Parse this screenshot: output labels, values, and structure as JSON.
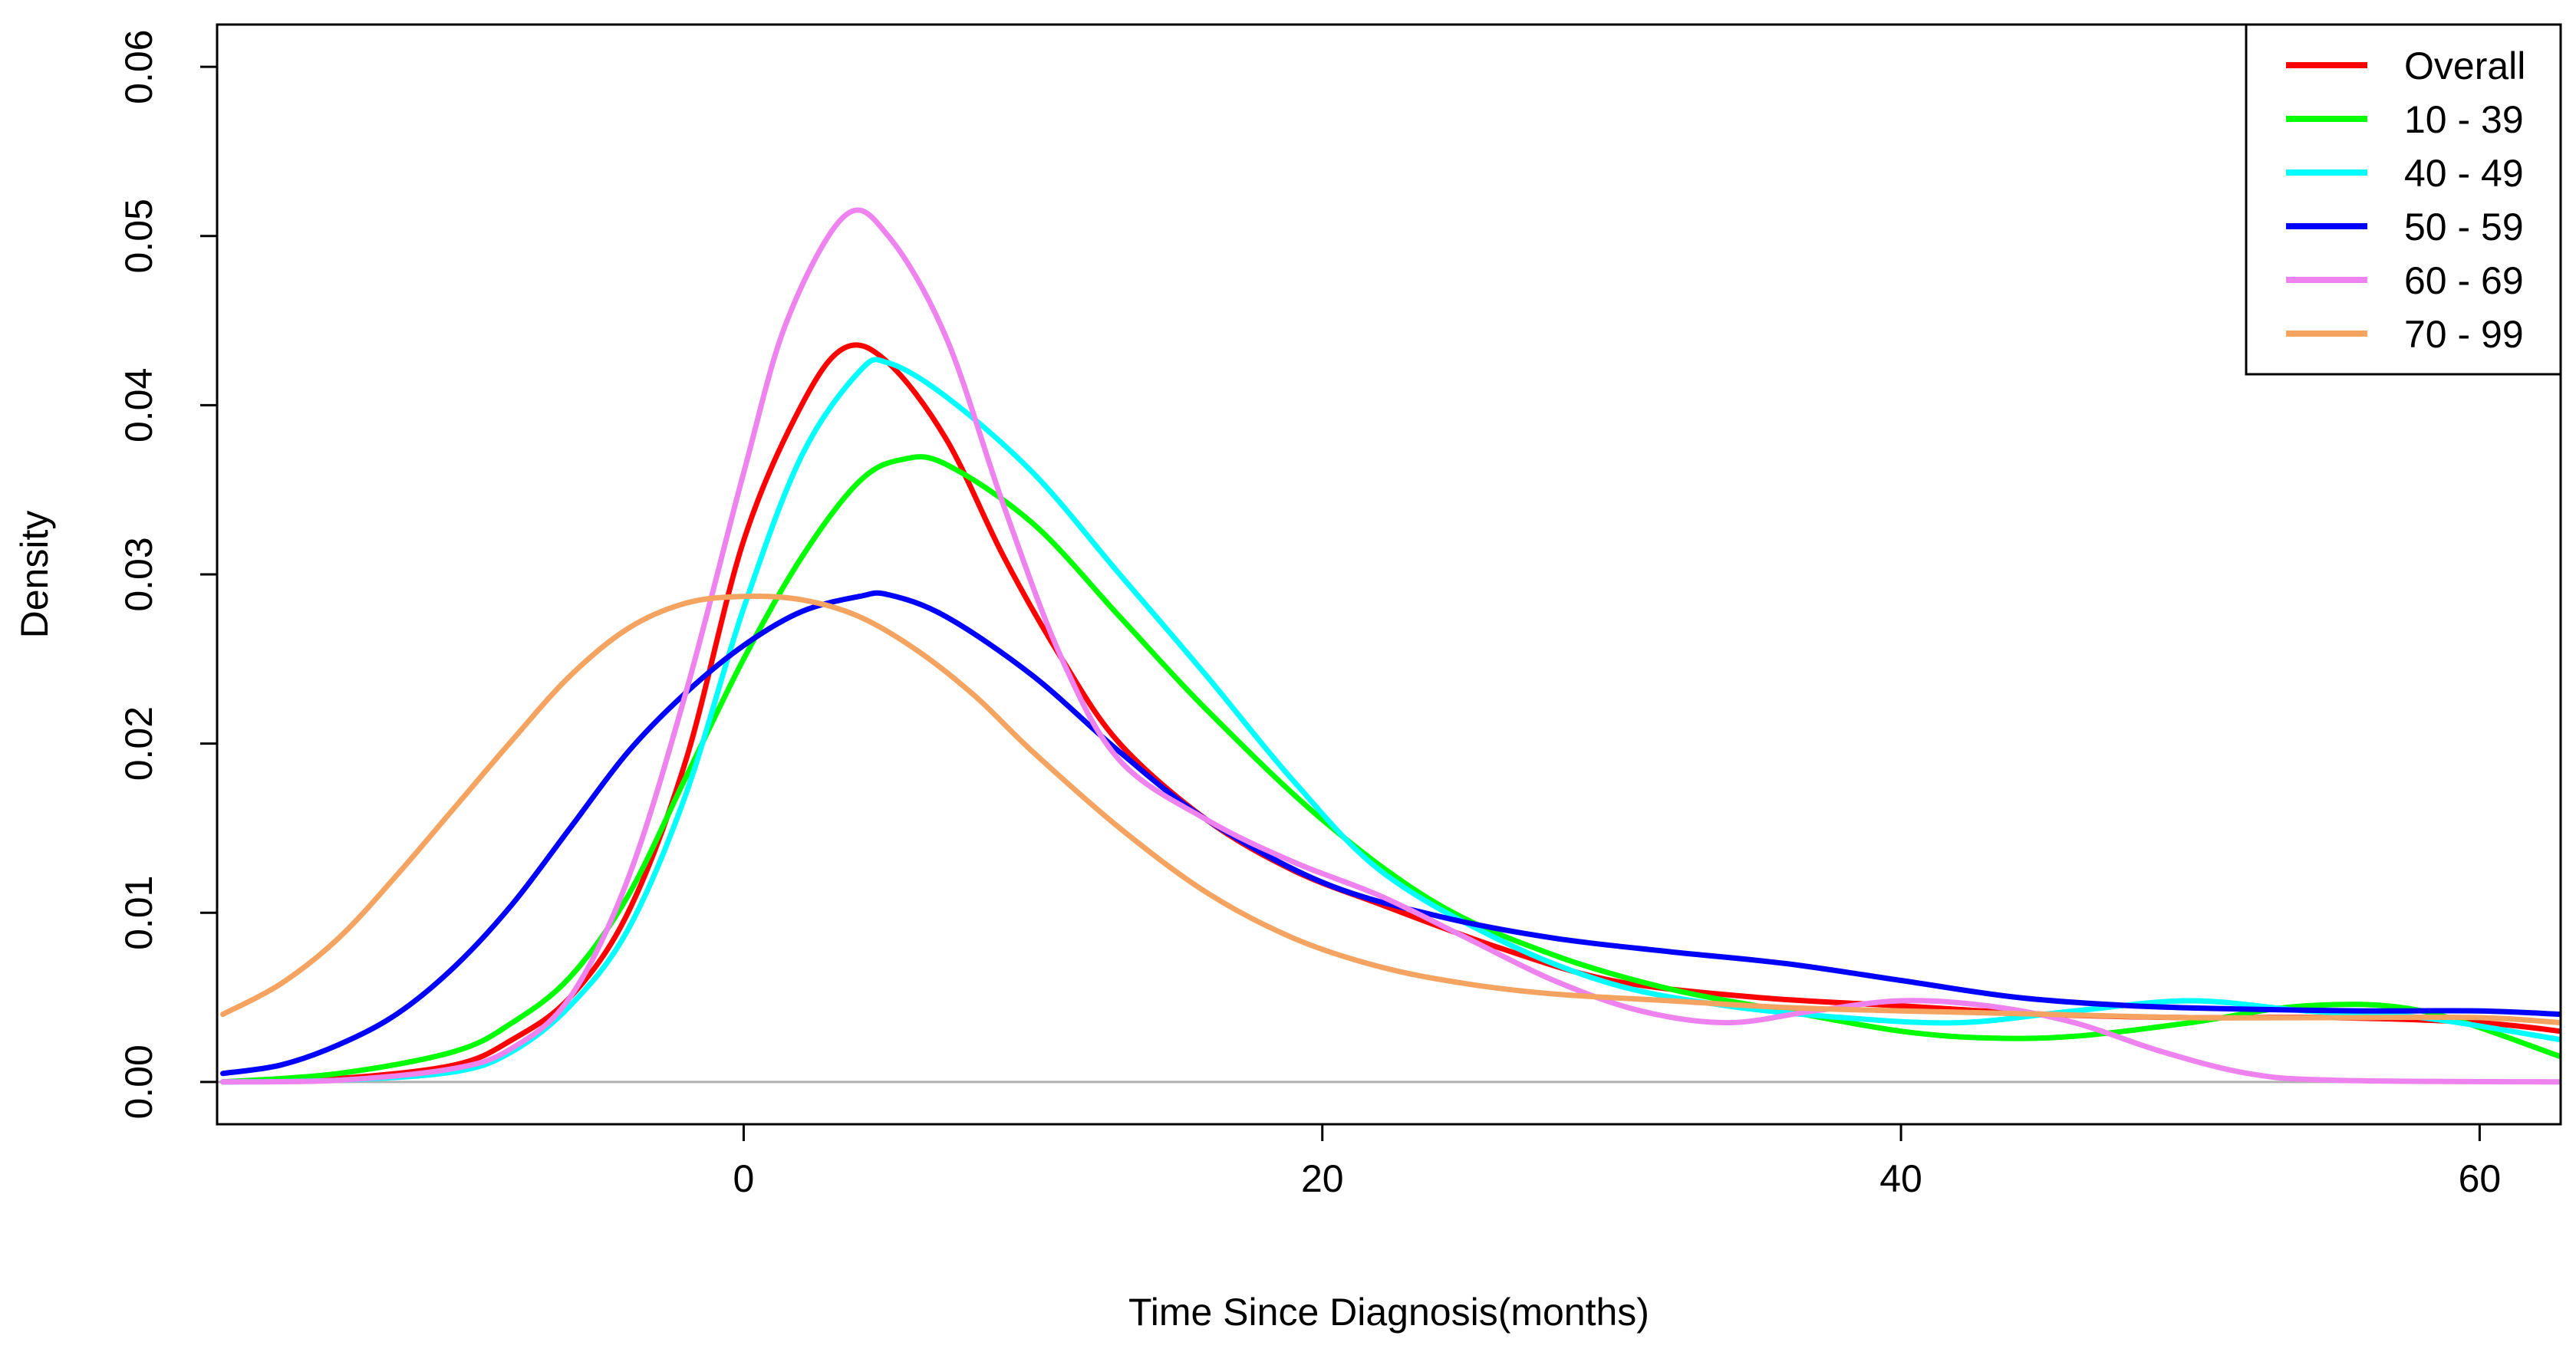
{
  "chart_data": {
    "type": "line",
    "title": "",
    "xlabel": "Time Since Diagnosis(months)",
    "ylabel": "Density",
    "xlim": [
      -18.2,
      62.8
    ],
    "ylim": [
      -0.0025,
      0.0625
    ],
    "xticks": [
      0,
      20,
      40,
      60
    ],
    "xtick_labels": [
      "0",
      "20",
      "40",
      "60"
    ],
    "yticks": [
      0.0,
      0.01,
      0.02,
      0.03,
      0.04,
      0.05,
      0.06
    ],
    "ytick_labels": [
      "0.00",
      "0.01",
      "0.02",
      "0.03",
      "0.04",
      "0.05",
      "0.06"
    ],
    "baseline": 0,
    "grid": false,
    "legend_position": "top-right",
    "series": [
      {
        "name": "Overall",
        "color": "#ff0000",
        "points": [
          [
            -18,
            0
          ],
          [
            -14,
            0.0002
          ],
          [
            -10,
            0.001
          ],
          [
            -8,
            0.0025
          ],
          [
            -6,
            0.005
          ],
          [
            -4,
            0.01
          ],
          [
            -2,
            0.019
          ],
          [
            0,
            0.032
          ],
          [
            2,
            0.04
          ],
          [
            3.5,
            0.0434
          ],
          [
            5,
            0.0425
          ],
          [
            7,
            0.038
          ],
          [
            9,
            0.031
          ],
          [
            11,
            0.025
          ],
          [
            13,
            0.02
          ],
          [
            16,
            0.0155
          ],
          [
            19,
            0.0125
          ],
          [
            22,
            0.0105
          ],
          [
            26,
            0.008
          ],
          [
            30,
            0.006
          ],
          [
            35,
            0.005
          ],
          [
            40,
            0.0045
          ],
          [
            45,
            0.004
          ],
          [
            50,
            0.0038
          ],
          [
            55,
            0.0038
          ],
          [
            60,
            0.0035
          ],
          [
            62.8,
            0.003
          ]
        ]
      },
      {
        "name": "10 - 39",
        "color": "#00ff00",
        "points": [
          [
            -18,
            0
          ],
          [
            -14,
            0.0005
          ],
          [
            -10,
            0.0018
          ],
          [
            -8,
            0.0035
          ],
          [
            -6,
            0.0062
          ],
          [
            -4,
            0.011
          ],
          [
            -2,
            0.018
          ],
          [
            0,
            0.025
          ],
          [
            2,
            0.031
          ],
          [
            4,
            0.0355
          ],
          [
            5.5,
            0.0368
          ],
          [
            7,
            0.0365
          ],
          [
            10,
            0.033
          ],
          [
            13,
            0.0275
          ],
          [
            16,
            0.022
          ],
          [
            20,
            0.0155
          ],
          [
            24,
            0.0105
          ],
          [
            28,
            0.0075
          ],
          [
            32,
            0.0055
          ],
          [
            36,
            0.0042
          ],
          [
            40,
            0.003
          ],
          [
            43,
            0.0026
          ],
          [
            46,
            0.0027
          ],
          [
            50,
            0.0035
          ],
          [
            54,
            0.0045
          ],
          [
            58,
            0.0042
          ],
          [
            62.8,
            0.0015
          ]
        ]
      },
      {
        "name": "40 - 49",
        "color": "#00ffff",
        "points": [
          [
            -18,
            0
          ],
          [
            -14,
            0.0001
          ],
          [
            -10,
            0.0006
          ],
          [
            -8,
            0.0018
          ],
          [
            -6,
            0.0045
          ],
          [
            -4,
            0.009
          ],
          [
            -2,
            0.017
          ],
          [
            0,
            0.028
          ],
          [
            2,
            0.037
          ],
          [
            4,
            0.042
          ],
          [
            5,
            0.0425
          ],
          [
            7,
            0.0405
          ],
          [
            10,
            0.036
          ],
          [
            13,
            0.03
          ],
          [
            16,
            0.024
          ],
          [
            19,
            0.0178
          ],
          [
            22,
            0.0125
          ],
          [
            26,
            0.0085
          ],
          [
            30,
            0.0058
          ],
          [
            34,
            0.0045
          ],
          [
            38,
            0.0038
          ],
          [
            42,
            0.0035
          ],
          [
            46,
            0.0042
          ],
          [
            50,
            0.0048
          ],
          [
            54,
            0.0042
          ],
          [
            58,
            0.0038
          ],
          [
            62.8,
            0.0025
          ]
        ]
      },
      {
        "name": "50 - 59",
        "color": "#0000ff",
        "points": [
          [
            -18,
            0.0005
          ],
          [
            -16,
            0.001
          ],
          [
            -14,
            0.0022
          ],
          [
            -12,
            0.004
          ],
          [
            -10,
            0.0068
          ],
          [
            -8,
            0.0105
          ],
          [
            -6,
            0.015
          ],
          [
            -4,
            0.0195
          ],
          [
            -2,
            0.023
          ],
          [
            0,
            0.0258
          ],
          [
            2,
            0.0278
          ],
          [
            4,
            0.0287
          ],
          [
            5,
            0.0288
          ],
          [
            7,
            0.0275
          ],
          [
            10,
            0.024
          ],
          [
            13,
            0.0195
          ],
          [
            16,
            0.0155
          ],
          [
            20,
            0.0118
          ],
          [
            24,
            0.0098
          ],
          [
            28,
            0.0085
          ],
          [
            32,
            0.0077
          ],
          [
            36,
            0.007
          ],
          [
            40,
            0.006
          ],
          [
            44,
            0.005
          ],
          [
            48,
            0.0045
          ],
          [
            52,
            0.0043
          ],
          [
            56,
            0.0042
          ],
          [
            60,
            0.0042
          ],
          [
            62.8,
            0.004
          ]
        ]
      },
      {
        "name": "60 - 69",
        "color": "#ee82ee",
        "points": [
          [
            -18,
            0
          ],
          [
            -14,
            0.0001
          ],
          [
            -10,
            0.0008
          ],
          [
            -8,
            0.002
          ],
          [
            -6,
            0.005
          ],
          [
            -4,
            0.012
          ],
          [
            -2,
            0.023
          ],
          [
            0,
            0.036
          ],
          [
            1.5,
            0.045
          ],
          [
            3.5,
            0.0512
          ],
          [
            5,
            0.05
          ],
          [
            7,
            0.044
          ],
          [
            9,
            0.034
          ],
          [
            11,
            0.025
          ],
          [
            13,
            0.019
          ],
          [
            16,
            0.0155
          ],
          [
            19,
            0.013
          ],
          [
            22,
            0.011
          ],
          [
            25,
            0.0085
          ],
          [
            28,
            0.006
          ],
          [
            31,
            0.0042
          ],
          [
            34,
            0.0035
          ],
          [
            37,
            0.0042
          ],
          [
            40,
            0.0048
          ],
          [
            43,
            0.0045
          ],
          [
            46,
            0.0035
          ],
          [
            49,
            0.0018
          ],
          [
            52,
            0.0005
          ],
          [
            55,
            0.0001
          ],
          [
            62.8,
            0
          ]
        ]
      },
      {
        "name": "70 - 99",
        "color": "#f4a460",
        "points": [
          [
            -18,
            0.004
          ],
          [
            -16,
            0.0058
          ],
          [
            -14,
            0.0085
          ],
          [
            -12,
            0.0122
          ],
          [
            -10,
            0.0162
          ],
          [
            -8,
            0.0202
          ],
          [
            -6,
            0.024
          ],
          [
            -4,
            0.0268
          ],
          [
            -2,
            0.0283
          ],
          [
            0,
            0.0287
          ],
          [
            2,
            0.0285
          ],
          [
            4,
            0.0275
          ],
          [
            6,
            0.0255
          ],
          [
            8,
            0.0228
          ],
          [
            10,
            0.0195
          ],
          [
            13,
            0.015
          ],
          [
            16,
            0.0112
          ],
          [
            19,
            0.0085
          ],
          [
            22,
            0.0068
          ],
          [
            25,
            0.0058
          ],
          [
            28,
            0.0052
          ],
          [
            32,
            0.0048
          ],
          [
            36,
            0.0044
          ],
          [
            40,
            0.0042
          ],
          [
            45,
            0.004
          ],
          [
            50,
            0.0038
          ],
          [
            55,
            0.0038
          ],
          [
            60,
            0.0038
          ],
          [
            62.8,
            0.0035
          ]
        ]
      }
    ]
  }
}
